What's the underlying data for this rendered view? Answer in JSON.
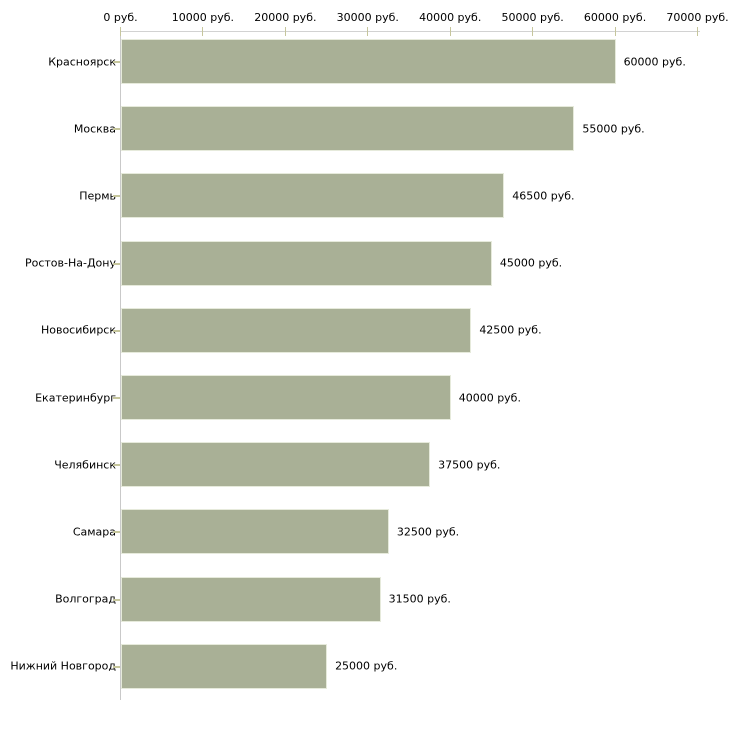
{
  "chart_data": {
    "type": "bar",
    "orientation": "horizontal",
    "title": "",
    "categories": [
      "Красноярск",
      "Москва",
      "Пермь",
      "Ростов-На-Дону",
      "Новосибирск",
      "Екатеринбург",
      "Челябинск",
      "Самара",
      "Волгоград",
      "Нижний Новгород"
    ],
    "values": [
      60000,
      55000,
      46500,
      45000,
      42500,
      40000,
      37500,
      32500,
      31500,
      25000
    ],
    "value_labels": [
      "60000 руб.",
      "55000 руб.",
      "46500 руб.",
      "45000 руб.",
      "42500 руб.",
      "40000 руб.",
      "37500 руб.",
      "32500 руб.",
      "31500 руб.",
      "25000 руб."
    ],
    "xlabel": "",
    "ylabel": "",
    "x_axis": {
      "position": "top",
      "min": 0,
      "max": 70000,
      "ticks": [
        0,
        10000,
        20000,
        30000,
        40000,
        50000,
        60000,
        70000
      ],
      "tick_labels": [
        "0 руб.",
        "10000 руб.",
        "20000 руб.",
        "30000 руб.",
        "40000 руб.",
        "50000 руб.",
        "60000 руб.",
        "70000 руб."
      ]
    },
    "grid": "off",
    "legend": "none",
    "colors": {
      "bar_fill": "#a9b096",
      "bar_border": "#e6eadb",
      "x_axis_line": "#d2d2d2",
      "y_axis_line": "#c9c9c9",
      "tick_mark": "#c6c69c",
      "text": "#000000",
      "background": "#ffffff"
    }
  }
}
